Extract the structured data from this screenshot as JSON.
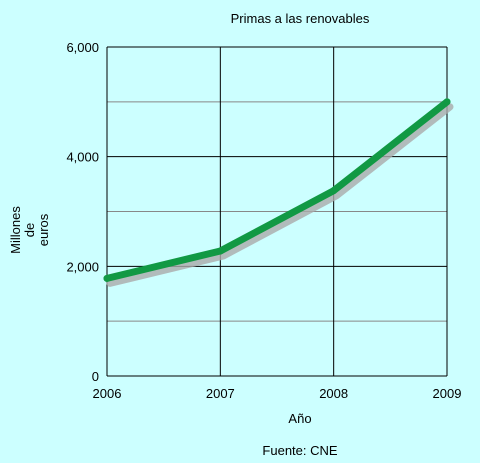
{
  "chart_data": {
    "type": "line",
    "title": "Primas a las renovables",
    "xlabel": "Año",
    "ylabel": [
      "Millones",
      "de",
      "euros"
    ],
    "source": "Fuente: CNE",
    "x": [
      2006,
      2007,
      2008,
      2009
    ],
    "x_tick_labels": [
      "2006",
      "2007",
      "2008",
      "2009"
    ],
    "y_tick_labels": [
      "0",
      "2,000",
      "4,000",
      "6,000"
    ],
    "y_ticks": [
      0,
      2000,
      4000,
      6000
    ],
    "xlim": [
      2006,
      2009
    ],
    "ylim": [
      0,
      6000
    ],
    "series": [
      {
        "values": [
          1780,
          2280,
          3380,
          5000
        ],
        "color": "#119944"
      }
    ],
    "grid": true,
    "colors": {
      "background": "#ccffff",
      "major_grid": "#000000",
      "minor_grid": "#888888",
      "shadow": "#aaaaaa"
    }
  }
}
